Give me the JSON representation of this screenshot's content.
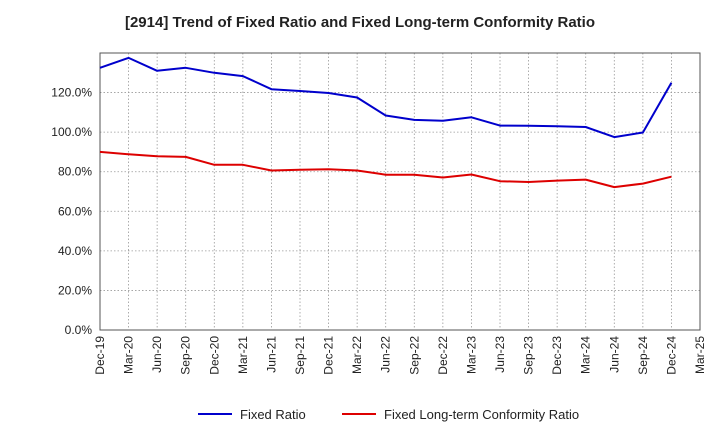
{
  "chart_data": {
    "type": "line",
    "title": "[2914]  Trend of Fixed Ratio and Fixed Long-term Conformity Ratio",
    "xlabel": "",
    "ylabel": "",
    "categories": [
      "Dec-19",
      "Mar-20",
      "Jun-20",
      "Sep-20",
      "Dec-20",
      "Mar-21",
      "Jun-21",
      "Sep-21",
      "Dec-21",
      "Mar-22",
      "Jun-22",
      "Sep-22",
      "Dec-22",
      "Mar-23",
      "Jun-23",
      "Sep-23",
      "Dec-23",
      "Mar-24",
      "Jun-24",
      "Sep-24",
      "Dec-24",
      "Mar-25"
    ],
    "y_ticks": [
      "0.0%",
      "20.0%",
      "40.0%",
      "60.0%",
      "80.0%",
      "100.0%",
      "120.0%"
    ],
    "ylim": [
      0,
      140
    ],
    "grid": true,
    "legend_position": "bottom",
    "series": [
      {
        "name": "Fixed Ratio",
        "color": "#0000cc",
        "values": [
          132.5,
          137.5,
          131.0,
          132.5,
          130.0,
          128.3,
          121.7,
          120.8,
          119.8,
          117.5,
          108.4,
          106.2,
          105.8,
          107.5,
          103.3,
          103.2,
          103.0,
          102.6,
          97.5,
          99.8,
          125.0,
          null
        ]
      },
      {
        "name": "Fixed Long-term Conformity Ratio",
        "color": "#dd0000",
        "values": [
          90.0,
          88.8,
          87.8,
          87.5,
          83.5,
          83.5,
          80.6,
          81.0,
          81.2,
          80.6,
          78.5,
          78.5,
          77.1,
          78.6,
          75.2,
          74.8,
          75.5,
          76.0,
          72.2,
          74.0,
          77.5,
          null
        ]
      }
    ]
  }
}
